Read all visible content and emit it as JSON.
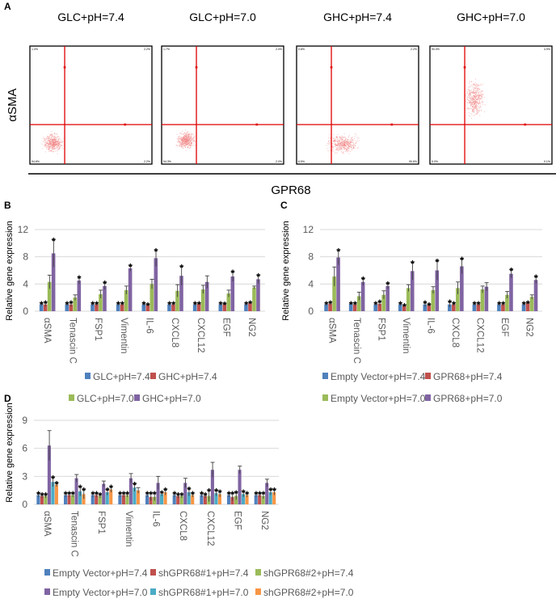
{
  "panel_labels": {
    "a": "A",
    "b": "B",
    "c": "C",
    "d": "D"
  },
  "flow": {
    "y_label": "αSMA",
    "x_label": "GPR68",
    "dot_color": "#f08080",
    "gate_color": "#e00000",
    "panels": [
      {
        "title": "GLC+pH=7.4",
        "quadrants": {
          "ul": "1.0%",
          "ur": "2.2%",
          "ll": "94.6%",
          "lr": "2.2%"
        }
      },
      {
        "title": "GLC+pH=7.0",
        "quadrants": {
          "ul": "1.7%",
          "ur": "2.0%",
          "ll": "94.3%",
          "lr": "2.0%"
        }
      },
      {
        "title": "GHC+pH=7.4",
        "quadrants": {
          "ul": "0.8%",
          "ur": "2.2%",
          "ll": "6.5%",
          "lr": "90.6%"
        }
      },
      {
        "title": "GHC+pH=7.0",
        "quadrants": {
          "ul": "90.0%",
          "ur": "4.9%",
          "ll": "5.0%",
          "lr": "0.1%"
        }
      }
    ]
  },
  "chart_data": [
    {
      "panel": "B",
      "type": "bar",
      "ylabel": "Relative gene expression",
      "ylim": [
        0,
        12
      ],
      "yticks": [
        0,
        4,
        8,
        12
      ],
      "grid": true,
      "legend": "bottom",
      "categories": [
        "αSMA",
        "Tenascin C",
        "FSP1",
        "Vimentin",
        "IL-6",
        "CXCL8",
        "CXCL12",
        "EGF",
        "NG2"
      ],
      "series": [
        {
          "name": "GLC+pH=7.4",
          "color": "#4F81BD",
          "values": [
            1.0,
            1.0,
            1.0,
            1.0,
            1.0,
            1.0,
            1.0,
            1.0,
            1.0
          ],
          "error": [
            0.2,
            0.2,
            0.2,
            0.2,
            0.2,
            0.2,
            0.2,
            0.2,
            0.2
          ],
          "significant": [
            true,
            true,
            true,
            true,
            true,
            true,
            true,
            true,
            true
          ]
        },
        {
          "name": "GHC+pH=7.4",
          "color": "#C0504D",
          "values": [
            1.0,
            1.0,
            1.0,
            1.0,
            0.9,
            1.0,
            1.1,
            1.0,
            1.2
          ],
          "error": [
            0.3,
            0.3,
            0.2,
            0.2,
            0.1,
            0.2,
            0.1,
            0.1,
            0.1
          ],
          "significant": [
            true,
            true,
            true,
            true,
            true,
            true,
            true,
            true,
            true
          ]
        },
        {
          "name": "GLC+pH=7.0",
          "color": "#9BBB59",
          "values": [
            4.3,
            2.0,
            2.5,
            3.1,
            4.0,
            3.0,
            3.2,
            2.6,
            3.5
          ],
          "error": [
            1.0,
            0.4,
            0.6,
            0.6,
            0.7,
            0.9,
            0.6,
            0.5,
            0.2
          ],
          "significant": [
            false,
            false,
            false,
            false,
            false,
            false,
            false,
            false,
            false
          ]
        },
        {
          "name": "GHC+pH=7.0",
          "color": "#8064A2",
          "values": [
            8.5,
            4.5,
            3.7,
            6.3,
            7.8,
            5.2,
            4.3,
            5.1,
            4.7
          ],
          "error": [
            2.0,
            0.5,
            0.5,
            0.4,
            1.2,
            1.4,
            0.9,
            0.7,
            0.6
          ],
          "significant": [
            true,
            true,
            true,
            true,
            true,
            true,
            false,
            true,
            true
          ]
        }
      ]
    },
    {
      "panel": "C",
      "type": "bar",
      "ylabel": "Relative gene expression",
      "ylim": [
        0,
        12
      ],
      "yticks": [
        0,
        4,
        8,
        12
      ],
      "grid": true,
      "legend": "bottom",
      "categories": [
        "αSMA",
        "Tenascin C",
        "FSP1",
        "Vimentin",
        "IL-6",
        "CXCL8",
        "CXCL12",
        "EGF",
        "NG2"
      ],
      "series": [
        {
          "name": "Empty Vector+pH=7.4",
          "color": "#4F81BD",
          "values": [
            1.0,
            1.1,
            1.0,
            1.0,
            1.0,
            1.0,
            1.0,
            1.0,
            1.0
          ],
          "error": [
            0.2,
            0.1,
            0.2,
            0.2,
            0.3,
            0.4,
            0.2,
            0.2,
            0.2
          ],
          "significant": [
            true,
            true,
            true,
            true,
            true,
            true,
            true,
            true,
            true
          ]
        },
        {
          "name": "GPR68+pH=7.4",
          "color": "#C0504D",
          "values": [
            1.1,
            1.0,
            1.1,
            0.8,
            0.9,
            1.0,
            1.0,
            1.0,
            1.2
          ],
          "error": [
            0.2,
            0.2,
            0.3,
            0.1,
            0.1,
            0.2,
            0.2,
            0.2,
            0.1
          ],
          "significant": [
            true,
            true,
            true,
            true,
            true,
            true,
            true,
            true,
            true
          ]
        },
        {
          "name": "Empty Vector+pH=7.0",
          "color": "#9BBB59",
          "values": [
            5.1,
            2.2,
            2.4,
            3.4,
            3.1,
            3.4,
            3.2,
            2.4,
            2.1
          ],
          "error": [
            1.4,
            0.6,
            0.6,
            0.5,
            0.5,
            0.9,
            0.5,
            0.5,
            0.3
          ],
          "significant": [
            false,
            false,
            false,
            false,
            false,
            false,
            false,
            false,
            false
          ]
        },
        {
          "name": "GPR68+pH=7.0",
          "color": "#8064A2",
          "values": [
            7.9,
            4.3,
            3.7,
            5.9,
            6.0,
            6.6,
            3.6,
            5.5,
            4.6
          ],
          "error": [
            1.1,
            0.5,
            0.4,
            1.3,
            1.4,
            1.1,
            0.6,
            0.6,
            0.5
          ],
          "significant": [
            true,
            true,
            true,
            true,
            true,
            true,
            false,
            true,
            true
          ]
        }
      ]
    },
    {
      "panel": "D",
      "type": "bar",
      "ylabel": "Relative gene expression",
      "ylim": [
        0,
        9
      ],
      "yticks": [
        0,
        3,
        6,
        9
      ],
      "grid": true,
      "legend": "bottom",
      "categories": [
        "αSMA",
        "Tenascin C",
        "FSP1",
        "Vimentin",
        "IL-6",
        "CXCL8",
        "CXCL12",
        "EGF",
        "NG2"
      ],
      "series": [
        {
          "name": "Empty Vector+pH=7.4",
          "color": "#4F81BD",
          "values": [
            1.0,
            1.0,
            1.0,
            1.0,
            1.0,
            1.0,
            1.0,
            1.0,
            1.0
          ],
          "error": [
            0.2,
            0.2,
            0.2,
            0.2,
            0.2,
            0.2,
            0.2,
            0.2,
            0.2
          ],
          "significant": [
            true,
            true,
            true,
            true,
            true,
            true,
            true,
            true,
            true
          ]
        },
        {
          "name": "shGPR68#1+pH=7.4",
          "color": "#C0504D",
          "values": [
            0.9,
            1.0,
            1.0,
            1.0,
            0.8,
            0.9,
            0.9,
            0.8,
            1.0
          ],
          "error": [
            0.2,
            0.2,
            0.2,
            0.2,
            0.4,
            0.2,
            0.2,
            0.4,
            0.2
          ],
          "significant": [
            true,
            true,
            true,
            true,
            true,
            true,
            true,
            true,
            true
          ]
        },
        {
          "name": "shGPR68#2+pH=7.4",
          "color": "#9BBB59",
          "values": [
            0.9,
            1.0,
            0.9,
            1.0,
            0.8,
            0.9,
            0.9,
            0.9,
            0.9
          ],
          "error": [
            0.2,
            0.2,
            0.2,
            0.2,
            0.4,
            0.2,
            0.6,
            0.4,
            0.3
          ],
          "significant": [
            true,
            true,
            true,
            true,
            true,
            true,
            true,
            true,
            true
          ]
        },
        {
          "name": "Empty Vector+pH=7.0",
          "color": "#8064A2",
          "values": [
            6.3,
            2.8,
            2.2,
            2.8,
            2.3,
            2.3,
            3.7,
            3.7,
            2.3
          ],
          "error": [
            1.6,
            0.4,
            0.3,
            0.5,
            0.7,
            0.5,
            0.8,
            0.4,
            0.4
          ],
          "significant": [
            false,
            false,
            false,
            false,
            false,
            false,
            false,
            false,
            false
          ]
        },
        {
          "name": "shGPR68#1+pH=7.0",
          "color": "#4BACC6",
          "values": [
            2.4,
            1.4,
            1.3,
            1.8,
            1.1,
            1.3,
            1.2,
            1.1,
            1.3
          ],
          "error": [
            0.5,
            0.5,
            0.3,
            0.4,
            0.2,
            0.4,
            0.3,
            0.3,
            0.3
          ],
          "significant": [
            true,
            true,
            true,
            true,
            true,
            true,
            true,
            true,
            true
          ]
        },
        {
          "name": "shGPR68#2+pH=7.0",
          "color": "#F79646",
          "values": [
            2.1,
            1.1,
            1.6,
            1.5,
            1.3,
            1.0,
            1.1,
            1.0,
            1.3
          ],
          "error": [
            0.2,
            0.5,
            0.3,
            0.3,
            0.3,
            0.2,
            0.3,
            0.2,
            0.3
          ],
          "significant": [
            true,
            true,
            true,
            false,
            true,
            true,
            true,
            true,
            true
          ]
        }
      ]
    }
  ]
}
